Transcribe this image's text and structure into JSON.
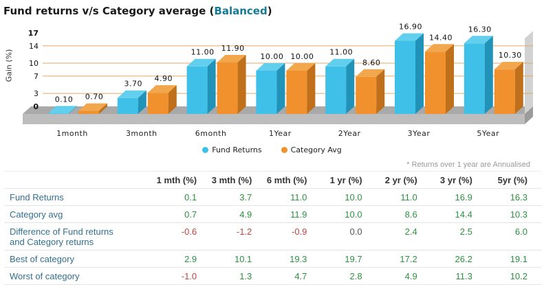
{
  "title": {
    "main": "Fund returns v/s Category average",
    "paren_open": "(",
    "category": "Balanced",
    "paren_close": ")"
  },
  "colors": {
    "accent_teal": "#147a96",
    "fund_bar": "#3fc0e8",
    "fund_bar_side": "#2193b8",
    "fund_bar_top": "#63cfee",
    "category_bar": "#f0912d",
    "category_bar_side": "#c06f1a",
    "category_bar_top": "#f3a74d",
    "gridline": "#e3aa64",
    "floor_grey": "#b5b5b5",
    "row_label_blue": "#336f8e",
    "positive_green": "#2c9240",
    "negative_red": "#c0443f",
    "note_grey": "#999999"
  },
  "chart_data": {
    "type": "bar",
    "title": "Fund returns v/s Category average (Balanced)",
    "categories": [
      "1month",
      "3month",
      "6month",
      "1Year",
      "2Year",
      "3Year",
      "5Year"
    ],
    "series": [
      {
        "name": "Fund Returns",
        "color": "#3fc0e8",
        "top": "#63cfee",
        "side": "#2193b8",
        "values": [
          0.1,
          3.7,
          11.0,
          10.0,
          11.0,
          16.9,
          16.3
        ]
      },
      {
        "name": "Category Avg",
        "color": "#f0912d",
        "top": "#f3a74d",
        "side": "#c06f1a",
        "values": [
          0.7,
          4.9,
          11.9,
          10.0,
          8.6,
          14.4,
          10.3
        ]
      }
    ],
    "xlabel": "",
    "ylabel": "Gain (%)",
    "ylim": [
      0,
      17
    ],
    "yticks": [
      0,
      3,
      7,
      10,
      14,
      17
    ],
    "grid_ticks": [
      3,
      7,
      10,
      14
    ],
    "grid": true,
    "legend_position": "bottom",
    "label_format_decimals": 2
  },
  "note": "* Returns over 1 year are Annualised",
  "table": {
    "headers": [
      "1 mth (%)",
      "3 mth (%)",
      "6 mth (%)",
      "1 yr (%)",
      "2 yr (%)",
      "3 yr (%)",
      "5yr (%)"
    ],
    "rows": [
      {
        "label": "Fund Returns",
        "values": [
          "0.1",
          "3.7",
          "11.0",
          "10.0",
          "11.0",
          "16.9",
          "16.3"
        ]
      },
      {
        "label": "Category avg",
        "values": [
          "0.7",
          "4.9",
          "11.9",
          "10.0",
          "8.6",
          "14.4",
          "10.3"
        ]
      },
      {
        "label": "Difference of Fund returns and Category returns",
        "values": [
          "-0.6",
          "-1.2",
          "-0.9",
          "0.0",
          "2.4",
          "2.5",
          "6.0"
        ]
      },
      {
        "label": "Best of category",
        "values": [
          "2.9",
          "10.1",
          "19.3",
          "19.7",
          "17.2",
          "26.2",
          "19.1"
        ]
      },
      {
        "label": "Worst of category",
        "values": [
          "-1.0",
          "1.3",
          "4.7",
          "2.8",
          "4.9",
          "11.3",
          "10.2"
        ]
      }
    ]
  }
}
